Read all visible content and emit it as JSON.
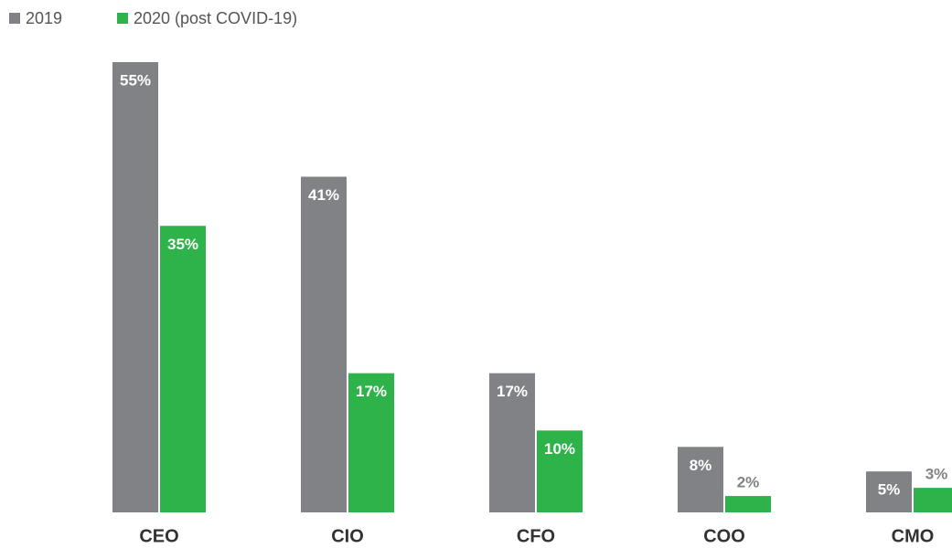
{
  "chart_data": {
    "type": "bar",
    "categories": [
      "CEO",
      "CIO",
      "CFO",
      "COO",
      "CMO"
    ],
    "series": [
      {
        "name": "2019",
        "color": "#808285",
        "values": [
          55,
          41,
          17,
          8,
          5
        ],
        "value_labels": [
          "55%",
          "41%",
          "17%",
          "8%",
          "5%"
        ]
      },
      {
        "name": "2020 (post COVID-19)",
        "color": "#2db34a",
        "values": [
          35,
          17,
          10,
          2,
          3
        ],
        "value_labels": [
          "35%",
          "17%",
          "10%",
          "2%",
          "3%"
        ]
      }
    ]
  }
}
